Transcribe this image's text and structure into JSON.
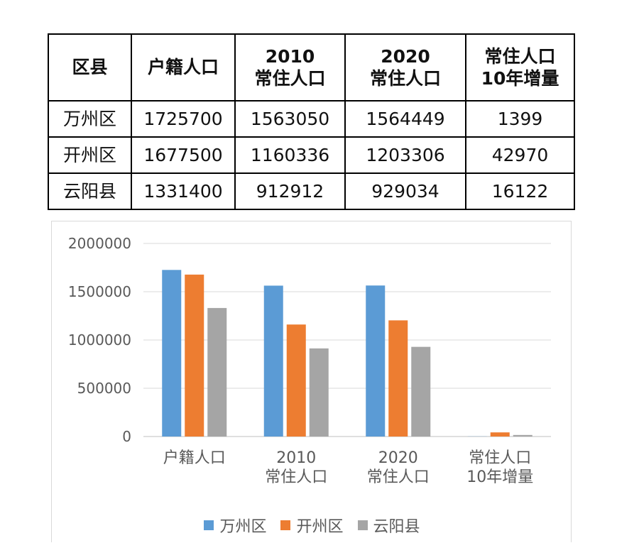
{
  "table": {
    "headers": [
      [
        "区县"
      ],
      [
        "户籍人口"
      ],
      [
        "2010",
        "常住人口"
      ],
      [
        "2020",
        "常住人口"
      ],
      [
        "常住人口",
        "10年增量"
      ]
    ],
    "rows": [
      [
        "万州区",
        "1725700",
        "1563050",
        "1564449",
        "1399"
      ],
      [
        "开州区",
        "1677500",
        "1160336",
        "1203306",
        "42970"
      ],
      [
        "云阳县",
        "1331400",
        "912912",
        "929034",
        "16122"
      ]
    ]
  },
  "chart_data": {
    "type": "bar",
    "categories": [
      [
        "户籍人口"
      ],
      [
        "2010",
        "常住人口"
      ],
      [
        "2020",
        "常住人口"
      ],
      [
        "常住人口",
        "10年增量"
      ]
    ],
    "series": [
      {
        "name": "万州区",
        "color": "#5B9BD5",
        "values": [
          1725700,
          1563050,
          1564449,
          1399
        ]
      },
      {
        "name": "开州区",
        "color": "#ED7D31",
        "values": [
          1677500,
          1160336,
          1203306,
          42970
        ]
      },
      {
        "name": "云阳县",
        "color": "#A5A5A5",
        "values": [
          1331400,
          912912,
          929034,
          16122
        ]
      }
    ],
    "ylim": [
      0,
      2000000
    ],
    "yticks": [
      "0",
      "500000",
      "1000000",
      "1500000",
      "2000000"
    ],
    "grid": true,
    "legend": "bottom"
  }
}
